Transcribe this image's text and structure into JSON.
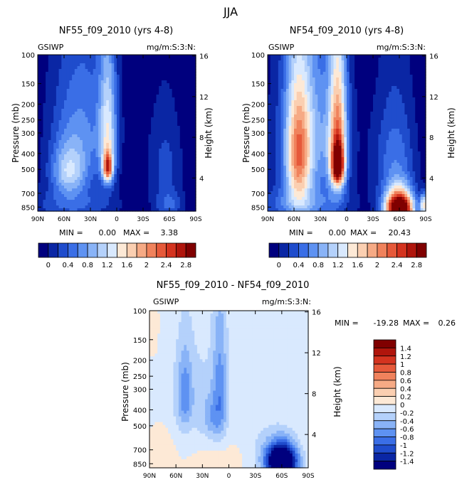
{
  "page": {
    "title": "JJA"
  },
  "colors": {
    "levels": [
      "#00007e",
      "#0a26a4",
      "#1f4ccc",
      "#3a6ee6",
      "#5e92f2",
      "#89b3f7",
      "#b4d1fb",
      "#d9e9fe",
      "#fde9d6",
      "#fbcfb1",
      "#f6aa85",
      "#f0825c",
      "#e6593a",
      "#d4331f",
      "#b0150c",
      "#800000"
    ],
    "diff_levels": [
      "#00007e",
      "#0a26a4",
      "#1f4ccc",
      "#3a6ee6",
      "#5e92f2",
      "#89b3f7",
      "#b4d1fb",
      "#d9e9fe",
      "#fde9d6",
      "#fbcfb1",
      "#f6aa85",
      "#f0825c",
      "#e6593a",
      "#d4331f",
      "#b0150c",
      "#800000"
    ]
  },
  "chart_data": [
    {
      "type": "heatmap",
      "id": "p1",
      "title": "NF55_f09_2010 (yrs 4-8)",
      "left_label": "GSIWP",
      "right_label": "mg/m:S:3:N:",
      "ylabel": "Pressure (mb)",
      "y2label": "Height (km)",
      "x_ticks": [
        "90N",
        "60N",
        "30N",
        "0",
        "30S",
        "60S",
        "90S"
      ],
      "x_range": [
        90,
        -90
      ],
      "y_ticks": [
        "100",
        "150",
        "200",
        "250",
        "300",
        "400",
        "500",
        "700",
        "850"
      ],
      "y_tick_values": [
        100,
        150,
        200,
        250,
        300,
        400,
        500,
        700,
        850
      ],
      "y_range": [
        100,
        900
      ],
      "y2_ticks": [
        "4",
        "8",
        "12",
        "16"
      ],
      "y2_tick_values": [
        4,
        8,
        12,
        16
      ],
      "min_label": "MIN =",
      "min_value": "0.00",
      "max_label": "MAX =",
      "max_value": "3.38",
      "colorbar": {
        "orientation": "horizontal",
        "labels": [
          "0",
          "0.4",
          "0.8",
          "1.2",
          "1.6",
          "2",
          "2.4",
          "2.8"
        ]
      },
      "features": [
        {
          "lat": 40,
          "p": 290,
          "slat": 26,
          "sp": 230,
          "peak": 0.8
        },
        {
          "lat": 55,
          "p": 520,
          "slat": 14,
          "sp": 130,
          "peak": 1.0
        },
        {
          "lat": 10,
          "p": 300,
          "slat": 7,
          "sp": 200,
          "peak": 1.2
        },
        {
          "lat": 10,
          "p": 490,
          "slat": 4,
          "sp": 70,
          "peak": 1.9
        },
        {
          "lat": 50,
          "p": 830,
          "slat": 36,
          "sp": 140,
          "peak": 0.6
        },
        {
          "lat": -55,
          "p": 450,
          "slat": 15,
          "sp": 240,
          "peak": 0.45
        },
        {
          "lat": -60,
          "p": 830,
          "slat": 12,
          "sp": 120,
          "peak": 0.55
        }
      ]
    },
    {
      "type": "heatmap",
      "id": "p2",
      "title": "NF54_f09_2010 (yrs 4-8)",
      "left_label": "GSIWP",
      "right_label": "mg/m:S:3:N:",
      "ylabel": "Pressure (mb)",
      "y2label": "Height (km)",
      "x_ticks": [
        "90N",
        "60N",
        "30N",
        "0",
        "30S",
        "60S",
        "90S"
      ],
      "x_range": [
        90,
        -90
      ],
      "y_ticks": [
        "100",
        "150",
        "200",
        "250",
        "300",
        "400",
        "500",
        "700",
        "850"
      ],
      "y_tick_values": [
        100,
        150,
        200,
        250,
        300,
        400,
        500,
        700,
        850
      ],
      "y_range": [
        100,
        900
      ],
      "y2_ticks": [
        "4",
        "8",
        "12",
        "16"
      ],
      "y2_tick_values": [
        4,
        8,
        12,
        16
      ],
      "min_label": "MIN =",
      "min_value": "0.00",
      "max_label": "MAX =",
      "max_value": "20.43",
      "colorbar": {
        "orientation": "horizontal",
        "labels": [
          "0",
          "0.4",
          "0.8",
          "1.2",
          "1.6",
          "2",
          "2.4",
          "2.8"
        ]
      },
      "features": [
        {
          "lat": 40,
          "p": 310,
          "slat": 28,
          "sp": 260,
          "peak": 1.0
        },
        {
          "lat": 55,
          "p": 420,
          "slat": 10,
          "sp": 260,
          "peak": 1.7
        },
        {
          "lat": 10,
          "p": 330,
          "slat": 7,
          "sp": 230,
          "peak": 1.9
        },
        {
          "lat": 10,
          "p": 480,
          "slat": 5,
          "sp": 90,
          "peak": 2.1
        },
        {
          "lat": 50,
          "p": 830,
          "slat": 36,
          "sp": 150,
          "peak": 0.8
        },
        {
          "lat": -55,
          "p": 460,
          "slat": 17,
          "sp": 270,
          "peak": 0.75
        },
        {
          "lat": -60,
          "p": 880,
          "slat": 11,
          "sp": 150,
          "peak": 4.0
        },
        {
          "lat": -88,
          "p": 830,
          "slat": 3,
          "sp": 90,
          "peak": 1.6
        }
      ]
    },
    {
      "type": "heatmap",
      "id": "p3",
      "title": "NF55_f09_2010 - NF54_f09_2010",
      "left_label": "GSIWP",
      "right_label": "mg/m:S:3:N:",
      "ylabel": "Pressure (mb)",
      "y2label": "Height (km)",
      "x_ticks": [
        "90N",
        "60N",
        "30N",
        "0",
        "30S",
        "60S",
        "90S"
      ],
      "x_range": [
        90,
        -90
      ],
      "y_ticks": [
        "100",
        "150",
        "200",
        "250",
        "300",
        "400",
        "500",
        "700",
        "850"
      ],
      "y_tick_values": [
        100,
        150,
        200,
        250,
        300,
        400,
        500,
        700,
        850
      ],
      "y_range": [
        100,
        900
      ],
      "y2_ticks": [
        "4",
        "8",
        "12",
        "16"
      ],
      "y2_tick_values": [
        4,
        8,
        12,
        16
      ],
      "min_label": "MIN =",
      "min_value": "-19.28",
      "max_label": "MAX =",
      "max_value": "0.26",
      "colorbar": {
        "orientation": "vertical",
        "labels": [
          "1.4",
          "1.2",
          "1",
          "0.8",
          "0.6",
          "0.4",
          "0.2",
          "0",
          "-0.2",
          "-0.4",
          "-0.6",
          "-0.8",
          "-1",
          "-1.2",
          "-1.4"
        ]
      },
      "features": [
        {
          "lat": 40,
          "p": 330,
          "slat": 25,
          "sp": 200,
          "peak": -0.25
        },
        {
          "lat": 50,
          "p": 320,
          "slat": 6,
          "sp": 120,
          "peak": -0.55
        },
        {
          "lat": 10,
          "p": 300,
          "slat": 6,
          "sp": 200,
          "peak": -0.6
        },
        {
          "lat": 20,
          "p": 450,
          "slat": 8,
          "sp": 100,
          "peak": -0.35
        },
        {
          "lat": -60,
          "p": 830,
          "slat": 12,
          "sp": 140,
          "peak": -2.5
        },
        {
          "lat": -40,
          "p": 720,
          "slat": 20,
          "sp": 220,
          "peak": -0.22
        },
        {
          "lat": 75,
          "p": 700,
          "slat": 8,
          "sp": 150,
          "peak": 0.2
        },
        {
          "lat": 0,
          "p": 780,
          "slat": 25,
          "sp": 120,
          "peak": 0.12
        },
        {
          "lat": 85,
          "p": 130,
          "slat": 4,
          "sp": 40,
          "peak": 0.12
        }
      ]
    }
  ]
}
